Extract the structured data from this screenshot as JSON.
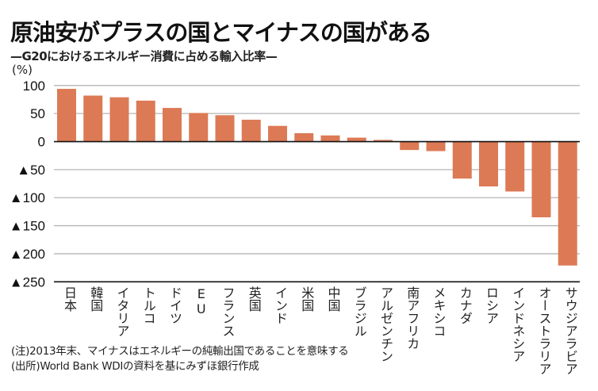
{
  "header": {
    "title": "原油安がプラスの国とマイナスの国がある",
    "subtitle": "—G20におけるエネルギー消費に占める輸入比率—",
    "unit": "(%)"
  },
  "notes": {
    "note": "(注)2013年末、マイナスはエネルギーの純輸出国であることを意味する",
    "source": "(出所)World Bank WDIの資料を基にみずほ銀行作成"
  },
  "colors": {
    "bar": "#DC7A55",
    "grid": "#b5b5b5",
    "axis": "#111111"
  },
  "chart_data": {
    "type": "bar",
    "title": "原油安がプラスの国とマイナスの国がある",
    "subtitle": "G20におけるエネルギー消費に占める輸入比率",
    "xlabel": "",
    "ylabel": "(%)",
    "ylim": [
      -250,
      100
    ],
    "yticks": [
      100,
      50,
      0,
      -50,
      -100,
      -150,
      -200,
      -250
    ],
    "ytick_labels": [
      "100",
      "50",
      "0",
      "▲50",
      "▲100",
      "▲150",
      "▲200",
      "▲250"
    ],
    "grid": true,
    "categories": [
      "日本",
      "韓国",
      "イタリア",
      "トルコ",
      "ドイツ",
      "EU",
      "フランス",
      "英国",
      "インド",
      "米国",
      "中国",
      "ブラジル",
      "アルゼンチン",
      "南アフリカ",
      "メキシコ",
      "カナダ",
      "ロシア",
      "インドネシア",
      "オーストラリア",
      "サウジアラビア"
    ],
    "values": [
      94,
      82,
      79,
      73,
      60,
      51,
      47,
      39,
      28,
      15,
      11,
      7,
      3,
      -15,
      -17,
      -66,
      -80,
      -89,
      -135,
      -221
    ]
  }
}
